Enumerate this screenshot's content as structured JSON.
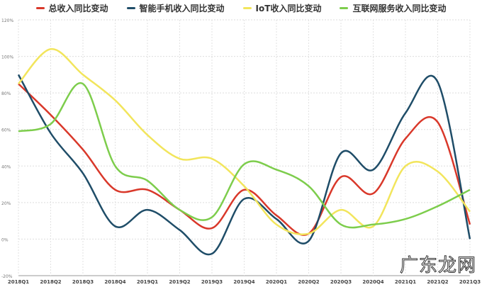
{
  "chart_data": {
    "type": "line",
    "title": "",
    "xlabel": "",
    "ylabel": "",
    "ylim": [
      -20,
      120
    ],
    "yticks": [
      -20,
      0,
      20,
      40,
      60,
      80,
      100,
      120
    ],
    "ytick_labels": [
      "-20%",
      "0%",
      "20%",
      "40%",
      "60%",
      "80%",
      "100%",
      "120%"
    ],
    "grid": true,
    "legend_position": "top-center",
    "categories": [
      "2018Q1",
      "2018Q2",
      "2018Q3",
      "2018Q4",
      "2019Q1",
      "2019Q2",
      "2019Q3",
      "2019Q4",
      "2020Q1",
      "2020Q2",
      "2020Q3",
      "2020Q4",
      "2021Q1",
      "2021Q2",
      "2021Q3"
    ],
    "series": [
      {
        "name": "总收入同比变动",
        "color": "#d9382a",
        "values": [
          85,
          68,
          49,
          27,
          27,
          16,
          6,
          27,
          13,
          3,
          34,
          25,
          55,
          64,
          8
        ]
      },
      {
        "name": "智能手机收入同比变动",
        "color": "#1f4d68",
        "values": [
          90,
          58,
          36,
          7,
          16,
          5,
          -8,
          22,
          11,
          -1,
          47,
          38,
          69,
          86,
          0
        ]
      },
      {
        "name": "IoT收入同比变动",
        "color": "#f2e55c",
        "values": [
          85,
          104,
          90,
          76,
          57,
          44,
          44,
          29,
          8,
          3,
          16,
          7,
          40,
          37,
          15
        ]
      },
      {
        "name": "互联网服务收入同比变动",
        "color": "#7dcd4c",
        "values": [
          59,
          63,
          85,
          40,
          32,
          16,
          12,
          41,
          38,
          29,
          8,
          8,
          11,
          18,
          27
        ]
      }
    ]
  },
  "watermark": "广东龙网"
}
